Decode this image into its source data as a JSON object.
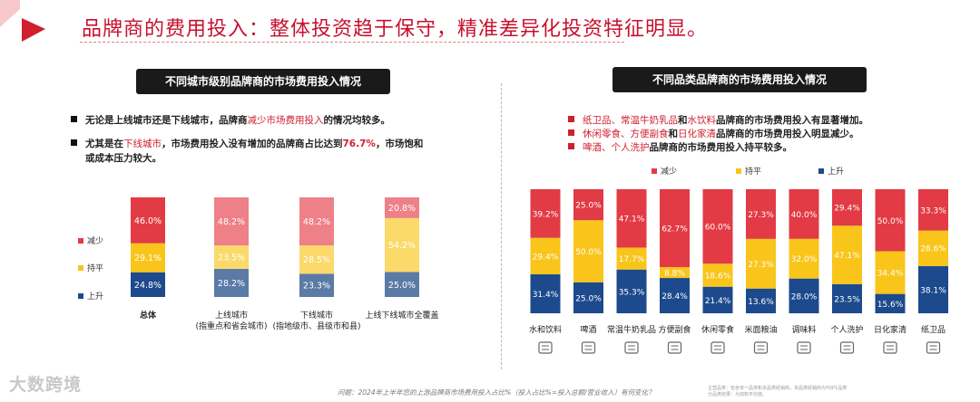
{
  "header": {
    "title": "品牌商的费用投入：整体投资趋于保守，精准差异化投资特征明显。"
  },
  "left_panel": {
    "title": "不同城市级别品牌商的市场费用投入情况",
    "bullet1": {
      "pre": "无论是上线城市还是下线城市，品牌商",
      "hl": "减少市场费用投入",
      "post": "的情况均较多。"
    },
    "bullet2": {
      "pre": "尤其是在",
      "hl1": "下线城市",
      "mid": "，市场费用投入没有增加的品牌商占比达到",
      "hl2": "76.7%",
      "post": "，市场饱和",
      "line2": "或成本压力较大。"
    }
  },
  "right_panel": {
    "title": "不同品类品牌商的市场费用投入情况",
    "bullet1": {
      "hl1": "纸卫品、常温牛奶乳品",
      "mid": "和",
      "hl2": "水饮料",
      "post": "品牌商的市场费用投入有显著增加。"
    },
    "bullet2": {
      "hl1": "休闲零食、方便副食",
      "mid": "和",
      "hl2": "日化家清",
      "post": "品牌商的市场费用投入明显减少。"
    },
    "bullet3": {
      "hl1": "啤酒、个人洗护",
      "post": "品牌商的市场费用投入持平较多。"
    }
  },
  "colors": {
    "decrease": "#e23b45",
    "flat": "#f9c51b",
    "increase": "#1c4a8c",
    "decrease_muted": "#ee8088",
    "flat_muted": "#fbd96a",
    "increase_muted": "#5b7aa6",
    "title_red": "#c8102e",
    "panel_dark": "#1a1a1a"
  },
  "chart_data": [
    {
      "type": "bar",
      "stacked": true,
      "percent": true,
      "categories": [
        "总体",
        "上线城市\n(指重点和省会城市)",
        "下线城市\n(指地级市、县级市和县)",
        "上线下线城市全覆盖"
      ],
      "series": [
        {
          "name": "上升",
          "values": [
            24.8,
            28.2,
            23.3,
            25.0
          ]
        },
        {
          "name": "持平",
          "values": [
            29.1,
            23.5,
            28.5,
            54.2
          ]
        },
        {
          "name": "减少",
          "values": [
            46.0,
            48.2,
            48.2,
            20.8
          ]
        }
      ],
      "labels": {
        "上升": [
          "24.8%",
          "28.2%",
          "23.3%",
          "25.0%"
        ],
        "持平": [
          "29.1%",
          "23.5%",
          "28.5%",
          "54.2%"
        ],
        "减少": [
          "46.0%",
          "48.2%",
          "48.2%",
          "20.8%"
        ]
      },
      "legend": [
        "减少",
        "持平",
        "上升"
      ],
      "legend_position": "left",
      "ylim": [
        0,
        100
      ]
    },
    {
      "type": "bar",
      "stacked": true,
      "percent": true,
      "categories": [
        "水和饮料",
        "啤酒",
        "常温牛奶乳品",
        "方便副食",
        "休闲零食",
        "米面粮油",
        "调味料",
        "个人洗护",
        "日化家清",
        "纸卫品"
      ],
      "series": [
        {
          "name": "上升",
          "values": [
            31.4,
            25.0,
            35.3,
            28.4,
            21.4,
            13.6,
            28.0,
            23.5,
            15.6,
            38.1
          ]
        },
        {
          "name": "持平",
          "values": [
            29.4,
            50.0,
            17.7,
            8.8,
            18.6,
            27.3,
            32.0,
            47.1,
            34.4,
            28.6
          ]
        },
        {
          "name": "减少",
          "values": [
            39.2,
            25.0,
            47.1,
            62.7,
            60.0,
            27.3,
            40.0,
            29.4,
            50.0,
            33.3
          ]
        }
      ],
      "labels": {
        "上升": [
          "31.4%",
          "25.0%",
          "35.3%",
          "28.4%",
          "21.4%",
          "13.6%",
          "28.0%",
          "23.5%",
          "15.6%",
          "38.1%"
        ],
        "持平": [
          "29.4%",
          "50.0%",
          "17.7%",
          "8.8%",
          "18.6%",
          "27.3%",
          "32.0%",
          "47.1%",
          "34.4%",
          "28.6%"
        ],
        "减少": [
          "39.2%",
          "25.0%",
          "47.1%",
          "62.7%",
          "60.0%",
          "27.3%",
          "40.0%",
          "29.4%",
          "50.0%",
          "33.3%"
        ]
      },
      "legend": [
        "减少",
        "持平",
        "上升"
      ],
      "legend_position": "top",
      "ylim": [
        0,
        100
      ]
    }
  ],
  "footer": {
    "logo": "大数跨境",
    "question": "问题：2024年上半年您的上游品牌商市场费用投入占比%（投入占比%=投入总额/营业收入）有何变化？",
    "note": "主营品类：包含单一品类和多品类经销商，多品类经销商为TOP1品类\n分品类结果：为加权平均值。"
  }
}
